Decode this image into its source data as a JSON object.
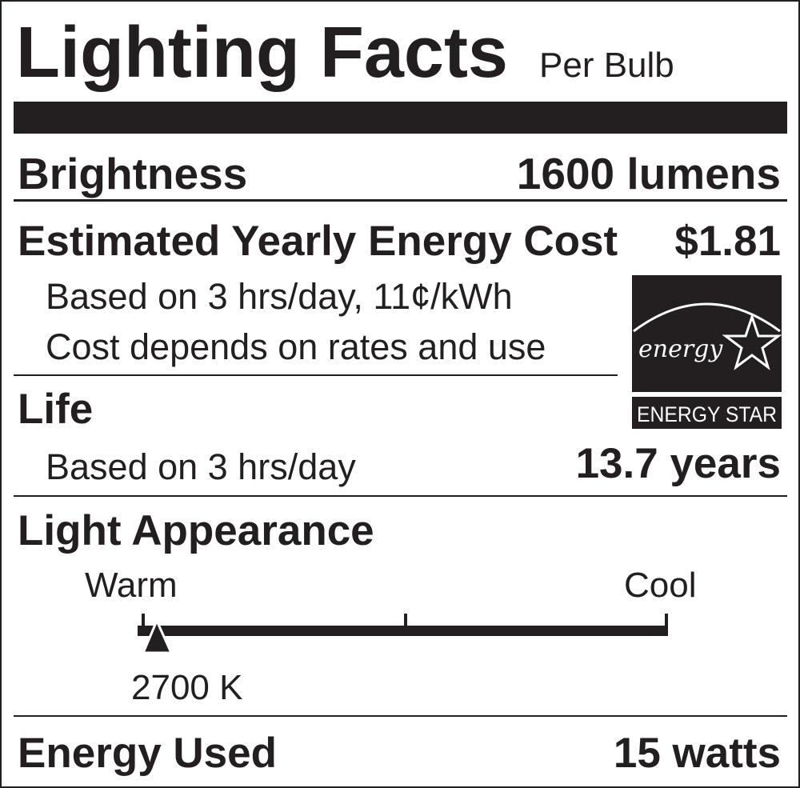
{
  "header": {
    "title": "Lighting Facts",
    "subtitle": "Per Bulb"
  },
  "brightness": {
    "label": "Brightness",
    "value": "1600 lumens"
  },
  "energy_cost": {
    "label": "Estimated Yearly Energy Cost",
    "value": "$1.81",
    "note_1": "Based on 3 hrs/day, 11¢/kWh",
    "note_2": "Cost depends on rates and use"
  },
  "energy_star_logo": {
    "script_text": "energy",
    "caption": "ENERGY STAR"
  },
  "life": {
    "label": "Life",
    "note": "Based on 3 hrs/day",
    "value": "13.7 years"
  },
  "light_appearance": {
    "label": "Light Appearance",
    "scale_left": "Warm",
    "scale_right": "Cool",
    "value": "2700 K",
    "scale_position_fraction": 0.03
  },
  "energy_used": {
    "label": "Energy Used",
    "value": "15 watts"
  },
  "colors": {
    "ink": "#231f20",
    "background": "#ffffff"
  }
}
